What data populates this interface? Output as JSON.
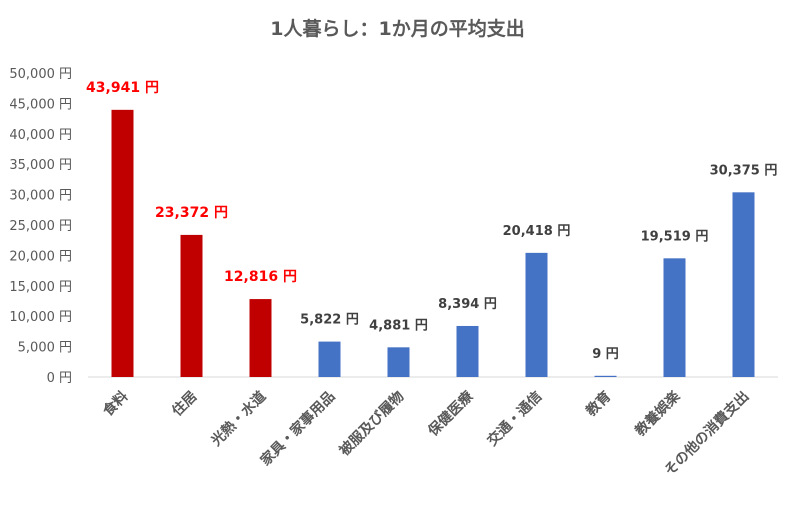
{
  "chart_data": {
    "type": "bar",
    "title": "1人暮らし：1か月の平均支出",
    "xlabel": "",
    "ylabel": "",
    "ylim": [
      0,
      50000
    ],
    "yticks": [
      "0 円",
      "5,000 円",
      "10,000 円",
      "15,000 円",
      "20,000 円",
      "25,000 円",
      "30,000 円",
      "35,000 円",
      "40,000 円",
      "45,000 円",
      "50,000 円"
    ],
    "categories": [
      "食料",
      "住居",
      "光熱・水道",
      "家具・家事用品",
      "被服及び履物",
      "保健医療",
      "交通・通信",
      "教育",
      "教養娯楽",
      "その他の消費支出"
    ],
    "values": [
      43941,
      23372,
      12816,
      5822,
      4881,
      8394,
      20418,
      9,
      19519,
      30375
    ],
    "data_labels": [
      "43,941 円",
      "23,372 円",
      "12,816 円",
      "5,822 円",
      "4,881 円",
      "8,394 円",
      "20,418 円",
      "9 円",
      "19,519 円",
      "30,375 円"
    ],
    "highlighted": [
      true,
      true,
      true,
      false,
      false,
      false,
      false,
      false,
      false,
      false
    ],
    "colors": {
      "highlight": "#C00000",
      "normal": "#4472C4",
      "highlight_label": "#FF0000",
      "normal_label": "#404040"
    },
    "grid": false,
    "legend": "none"
  }
}
